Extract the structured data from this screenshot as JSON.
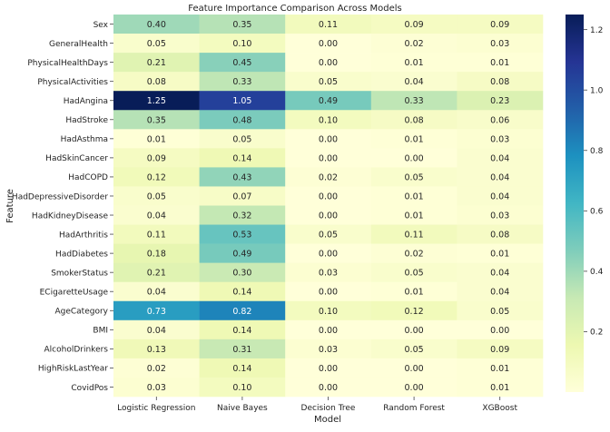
{
  "chart_data": {
    "type": "heatmap",
    "title": "Feature Importance Comparison Across Models",
    "xlabel": "Model",
    "ylabel": "Feature",
    "columns": [
      "Logistic Regression",
      "Naive Bayes",
      "Decision Tree",
      "Random Forest",
      "XGBoost"
    ],
    "rows": [
      "Sex",
      "GeneralHealth",
      "PhysicalHealthDays",
      "PhysicalActivities",
      "HadAngina",
      "HadStroke",
      "HadAsthma",
      "HadSkinCancer",
      "HadCOPD",
      "HadDepressiveDisorder",
      "HadKidneyDisease",
      "HadArthritis",
      "HadDiabetes",
      "SmokerStatus",
      "ECigaretteUsage",
      "AgeCategory",
      "BMI",
      "AlcoholDrinkers",
      "HighRiskLastYear",
      "CovidPos"
    ],
    "values": [
      [
        0.4,
        0.35,
        0.11,
        0.09,
        0.09
      ],
      [
        0.05,
        0.1,
        0.0,
        0.02,
        0.03
      ],
      [
        0.21,
        0.45,
        0.0,
        0.01,
        0.01
      ],
      [
        0.08,
        0.33,
        0.05,
        0.04,
        0.08
      ],
      [
        1.25,
        1.05,
        0.49,
        0.33,
        0.23
      ],
      [
        0.35,
        0.48,
        0.1,
        0.08,
        0.06
      ],
      [
        0.01,
        0.05,
        0.0,
        0.01,
        0.03
      ],
      [
        0.09,
        0.14,
        0.0,
        0.0,
        0.04
      ],
      [
        0.12,
        0.43,
        0.02,
        0.05,
        0.04
      ],
      [
        0.05,
        0.07,
        0.0,
        0.01,
        0.04
      ],
      [
        0.04,
        0.32,
        0.0,
        0.01,
        0.03
      ],
      [
        0.11,
        0.53,
        0.05,
        0.11,
        0.08
      ],
      [
        0.18,
        0.49,
        0.0,
        0.02,
        0.01
      ],
      [
        0.21,
        0.3,
        0.03,
        0.05,
        0.04
      ],
      [
        0.04,
        0.14,
        0.0,
        0.01,
        0.04
      ],
      [
        0.73,
        0.82,
        0.1,
        0.12,
        0.05
      ],
      [
        0.04,
        0.14,
        0.0,
        0.0,
        0.0
      ],
      [
        0.13,
        0.31,
        0.03,
        0.05,
        0.09
      ],
      [
        0.02,
        0.14,
        0.0,
        0.0,
        0.01
      ],
      [
        0.03,
        0.1,
        0.0,
        0.0,
        0.01
      ]
    ],
    "value_range": [
      0,
      1.25
    ],
    "colorbar_ticks": [
      "0.2",
      "0.4",
      "0.6",
      "0.8",
      "1.0",
      "1.2"
    ],
    "colormap": "YlGnBu",
    "colormap_stops": [
      "#ffffd9",
      "#edf8b1",
      "#c7e9b4",
      "#7fcdbb",
      "#41b6c4",
      "#1d91c0",
      "#225ea8",
      "#253494",
      "#081d58"
    ]
  }
}
